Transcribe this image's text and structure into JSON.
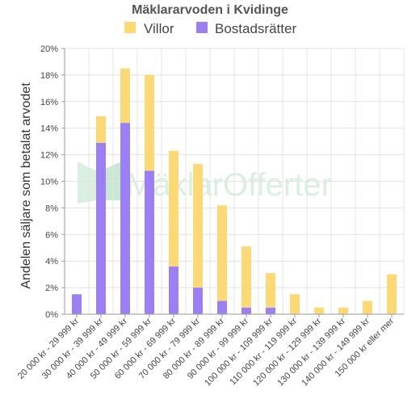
{
  "chart_data": {
    "type": "bar",
    "stacked": true,
    "title": "Mäklararvoden i Kvidinge",
    "ylabel": "Andelen säljare som betalat arvodet",
    "xlabel": "",
    "ylim": [
      0,
      20
    ],
    "yticks": [
      0,
      2,
      4,
      6,
      8,
      10,
      12,
      14,
      16,
      18,
      20
    ],
    "ytick_suffix": "%",
    "grid": true,
    "legend_position": "top",
    "categories": [
      "20 000 kr - 29 999 kr",
      "30 000 kr - 39 999 kr",
      "40 000 kr - 49 999 kr",
      "50 000 kr - 59 999 kr",
      "60 000 kr - 69 999 kr",
      "70 000 kr - 79 999 kr",
      "80 000 kr - 89 999 kr",
      "90 000 kr - 99 999 kr",
      "100 000 kr - 109 999 kr",
      "110 000 kr - 119 999 kr",
      "120 000 kr - 129 999 kr",
      "130 000 kr - 139 999 kr",
      "140 000 kr - 149 999 kr",
      "150 000 kr eller mer"
    ],
    "series": [
      {
        "name": "Bostadsrätter",
        "color": "#9d7ff5",
        "values": [
          1.5,
          12.9,
          14.4,
          10.8,
          3.6,
          2.0,
          1.0,
          0.5,
          0.5,
          0,
          0,
          0,
          0,
          0
        ]
      },
      {
        "name": "Villor",
        "color": "#fdd976",
        "values": [
          0,
          2.0,
          4.1,
          7.2,
          8.7,
          9.3,
          7.2,
          4.6,
          2.6,
          1.5,
          0.5,
          0.5,
          1.0,
          3.0
        ]
      }
    ],
    "legend_order": [
      "Villor",
      "Bostadsrätter"
    ],
    "watermark": "MäklarOfferter"
  }
}
